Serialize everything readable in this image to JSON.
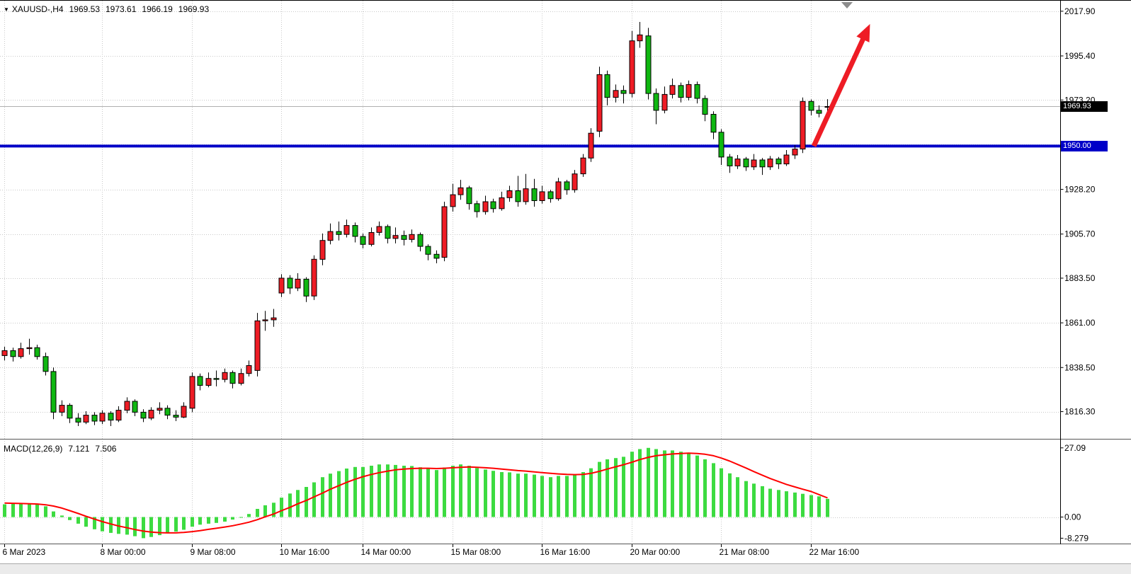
{
  "header": {
    "symbol_period": "XAUUSD-,H4",
    "open": "1969.53",
    "high": "1973.61",
    "low": "1966.19",
    "close": "1969.93"
  },
  "indicator": {
    "name": "MACD(12,26,9)",
    "value_main": "7.121",
    "value_signal": "7.506"
  },
  "colors": {
    "bull": "#EE1C25",
    "bear": "#0FB711",
    "candle_outline": "#000000",
    "grid": "#C8C8C8",
    "macd_hist": "#3CDB40",
    "macd_signal": "#FF0000",
    "hline": "#0000C8",
    "current_line": "#B0B0B0",
    "shift_marker": "#8C8C8C",
    "axis_text": "#000000"
  },
  "chart_data": {
    "type": "candlestick",
    "symbol": "XAUUSD",
    "timeframe": "H4",
    "title": "XAUUSD-,H4 1969.53 1973.61 1966.19 1969.93",
    "current_price": 1969.93,
    "current_price_label": "1969.93",
    "horizontal_line": 1950.0,
    "hline_label": "1950.00",
    "price_axis": {
      "view_top": 2023.2,
      "view_bottom": 1802.6,
      "grid": [
        {
          "v": 2017.9,
          "t": "2017.90"
        },
        {
          "v": 1995.4,
          "t": "1995.40"
        },
        {
          "v": 1973.2,
          "t": "1973.20"
        },
        {
          "v": 1950.7,
          "t": null
        },
        {
          "v": 1928.2,
          "t": "1928.20"
        },
        {
          "v": 1905.7,
          "t": "1905.70"
        },
        {
          "v": 1883.5,
          "t": "1883.50"
        },
        {
          "v": 1861.0,
          "t": "1861.00"
        },
        {
          "v": 1838.5,
          "t": "1838.50"
        },
        {
          "v": 1816.3,
          "t": "1816.30"
        }
      ]
    },
    "time_axis": {
      "labels": [
        {
          "i": 0,
          "t": "6 Mar 2023"
        },
        {
          "i": 12,
          "t": "8 Mar 00:00"
        },
        {
          "i": 23,
          "t": "9 Mar 08:00"
        },
        {
          "i": 34,
          "t": "10 Mar 16:00"
        },
        {
          "i": 44,
          "t": "14 Mar 00:00"
        },
        {
          "i": 55,
          "t": "15 Mar 08:00"
        },
        {
          "i": 66,
          "t": "16 Mar 16:00"
        },
        {
          "i": 77,
          "t": "20 Mar 00:00"
        },
        {
          "i": 88,
          "t": "21 Mar 08:00"
        },
        {
          "i": 99,
          "t": "22 Mar 16:00"
        }
      ]
    },
    "candles": {
      "open": [
        1844.5,
        1847,
        1844,
        1848,
        1848.5,
        1844,
        1836.5,
        1816,
        1819.5,
        1813,
        1811,
        1814.5,
        1811.5,
        1815.5,
        1812,
        1817,
        1821.5,
        1816,
        1813,
        1817,
        1818,
        1814.5,
        1813.5,
        1818,
        1834,
        1829.5,
        1833,
        1832.5,
        1836,
        1830.5,
        1835.5,
        1837,
        1862,
        1862.5,
        1876,
        1883.5,
        1878.5,
        1883,
        1874.5,
        1893,
        1902.5,
        1907,
        1905.5,
        1910,
        1904.5,
        1900.5,
        1906.5,
        1909.5,
        1903.5,
        1905,
        1903,
        1905.5,
        1899.5,
        1895.5,
        1894,
        1919.5,
        1925.5,
        1929,
        1921,
        1917,
        1922,
        1918.5,
        1924,
        1927.5,
        1922,
        1928.5,
        1922.5,
        1927,
        1923.5,
        1932,
        1928,
        1936,
        1944,
        1957.5,
        1986,
        1974.5,
        1978,
        1976.5,
        2003,
        2005.5,
        1976.5,
        1968,
        1976,
        1980.5,
        1974.5,
        1981,
        1974,
        1966,
        1957,
        1944.5,
        1940,
        1943.5,
        1939.5,
        1943,
        1939.5,
        1943.5,
        1941,
        1945.5,
        1948.5,
        1972.5,
        1968,
        1969.53
      ],
      "high": [
        1849,
        1848.5,
        1851,
        1853,
        1850,
        1846,
        1838.5,
        1822,
        1820.5,
        1815.5,
        1816.5,
        1816,
        1817,
        1816.5,
        1819,
        1823.5,
        1822.5,
        1817.5,
        1818.5,
        1821,
        1819.5,
        1817,
        1821,
        1836,
        1835.5,
        1836,
        1837,
        1838,
        1837,
        1838,
        1842,
        1866,
        1867,
        1868,
        1885.5,
        1885,
        1886,
        1884,
        1895,
        1906,
        1911,
        1912,
        1913,
        1911.5,
        1906,
        1909,
        1912,
        1910.5,
        1909,
        1907.5,
        1908,
        1906.5,
        1900.5,
        1897.5,
        1922,
        1931,
        1933,
        1930,
        1922.5,
        1925,
        1923.5,
        1927,
        1930,
        1935,
        1936,
        1933.5,
        1930,
        1928,
        1934,
        1933,
        1938,
        1946,
        1959,
        1990,
        1988,
        1981,
        1980.5,
        2008,
        2012.5,
        2009.5,
        1979,
        1980,
        1984,
        1982,
        1983,
        1982.5,
        1975.5,
        1967.5,
        1958.5,
        1946,
        1945.5,
        1944.5,
        1946,
        1944,
        1945,
        1944.5,
        1948,
        1950.5,
        1974.5,
        1973.5,
        1970.5,
        1973.61
      ],
      "low": [
        1842,
        1841.5,
        1843,
        1845,
        1842.5,
        1834.5,
        1812.5,
        1814,
        1810.5,
        1809,
        1810,
        1809.5,
        1810,
        1809,
        1811,
        1815.5,
        1814,
        1811,
        1812,
        1815,
        1812.5,
        1811.5,
        1813,
        1816,
        1827,
        1828.5,
        1829,
        1831,
        1828,
        1829.5,
        1834,
        1834,
        1857,
        1859,
        1874,
        1875.5,
        1877,
        1871.5,
        1872.5,
        1890,
        1900.5,
        1902.5,
        1904,
        1901.5,
        1898.5,
        1899.5,
        1905,
        1901,
        1901,
        1900,
        1901.5,
        1897,
        1892.5,
        1891,
        1892,
        1917,
        1923,
        1918,
        1914,
        1915.5,
        1916.5,
        1917.5,
        1922,
        1919.5,
        1920.5,
        1919.5,
        1921,
        1921.5,
        1922.5,
        1925.5,
        1926.5,
        1934.5,
        1942,
        1954.5,
        1970.5,
        1972,
        1971.5,
        1974.5,
        1999.5,
        1973.5,
        1961,
        1966.5,
        1974,
        1972,
        1973,
        1971.5,
        1962.5,
        1953.5,
        1940.5,
        1936.5,
        1938.5,
        1937.5,
        1938,
        1935.5,
        1938,
        1938.5,
        1940,
        1943.5,
        1946.5,
        1965.5,
        1964.5,
        1966.19
      ],
      "close": [
        1847,
        1844,
        1848,
        1848.5,
        1844,
        1836.5,
        1816,
        1819.5,
        1813,
        1811,
        1814.5,
        1811.5,
        1815.5,
        1812,
        1817,
        1821.5,
        1816,
        1813,
        1817,
        1818,
        1814.5,
        1813.5,
        1819,
        1834,
        1829.5,
        1833,
        1832.5,
        1836,
        1830.5,
        1835.5,
        1839.5,
        1862,
        1862.5,
        1863.5,
        1883.5,
        1878.5,
        1883,
        1874.5,
        1893,
        1902.5,
        1907,
        1905.5,
        1910,
        1904.5,
        1900.5,
        1906.5,
        1909.5,
        1903.5,
        1905,
        1903,
        1905.5,
        1899.5,
        1895.5,
        1893.5,
        1919.5,
        1925.5,
        1929,
        1921,
        1917,
        1922,
        1918.5,
        1924,
        1927.5,
        1922,
        1928.5,
        1922.5,
        1927,
        1923.5,
        1932,
        1928,
        1936,
        1944,
        1956.5,
        1986,
        1974.5,
        1978,
        1976.5,
        2003,
        2006,
        1976.5,
        1968,
        1976,
        1980.5,
        1974.5,
        1981,
        1974,
        1966,
        1957,
        1944.5,
        1940,
        1943.5,
        1939.5,
        1943,
        1939.5,
        1943.5,
        1941,
        1945.5,
        1948.5,
        1972.5,
        1968,
        1966.5,
        1969.93
      ]
    },
    "macd": {
      "view_top": 29.8,
      "view_bottom": -10.1,
      "axis_labels": [
        {
          "v": 27.09,
          "t": "27.09"
        },
        {
          "v": 0,
          "t": "0.00"
        },
        {
          "v": -8.279,
          "t": "-8.279"
        }
      ],
      "histogram": [
        5.0,
        5.2,
        5.4,
        5.3,
        5.0,
        4.2,
        2.2,
        0.6,
        -1.2,
        -2.6,
        -3.8,
        -4.8,
        -5.6,
        -6.2,
        -6.6,
        -6.9,
        -7.5,
        -8.279,
        -7.8,
        -7.1,
        -6.4,
        -5.7,
        -5.0,
        -3.8,
        -3.0,
        -2.6,
        -2.3,
        -1.8,
        -1.0,
        0.0,
        1.2,
        3.2,
        4.6,
        5.6,
        7.6,
        9.2,
        10.6,
        11.8,
        13.6,
        15.6,
        17.0,
        18.0,
        19.0,
        19.6,
        19.6,
        20.1,
        20.6,
        20.6,
        20.4,
        20.1,
        20.0,
        19.5,
        19.0,
        18.4,
        19.4,
        20.1,
        20.6,
        20.1,
        19.2,
        18.6,
        18.1,
        17.6,
        17.5,
        17.0,
        17.0,
        16.6,
        16.1,
        15.6,
        16.1,
        16.1,
        16.6,
        17.6,
        19.1,
        21.6,
        22.6,
        23.1,
        23.6,
        25.6,
        26.6,
        27.09,
        26.6,
        26.1,
        26.1,
        25.6,
        25.1,
        24.1,
        22.6,
        21.1,
        19.1,
        17.1,
        15.6,
        14.1,
        13.1,
        12.1,
        11.1,
        10.6,
        10.1,
        9.6,
        9.1,
        8.6,
        8.1,
        7.121
      ],
      "signal": [
        5.5,
        5.4,
        5.3,
        5.2,
        5.1,
        4.8,
        4.3,
        3.5,
        2.5,
        1.4,
        0.3,
        -0.8,
        -1.8,
        -2.7,
        -3.5,
        -4.2,
        -4.9,
        -5.5,
        -5.9,
        -6.1,
        -6.2,
        -6.2,
        -6.0,
        -5.7,
        -5.3,
        -4.8,
        -4.4,
        -3.9,
        -3.4,
        -2.7,
        -2.0,
        -1.0,
        0.1,
        1.2,
        2.5,
        3.8,
        5.2,
        6.5,
        7.9,
        9.4,
        10.9,
        12.3,
        13.6,
        14.8,
        15.8,
        16.7,
        17.4,
        18.0,
        18.5,
        18.8,
        19.0,
        19.1,
        19.1,
        19.0,
        19.1,
        19.3,
        19.5,
        19.6,
        19.5,
        19.3,
        19.1,
        18.8,
        18.5,
        18.2,
        18.0,
        17.7,
        17.4,
        17.1,
        16.9,
        16.7,
        16.6,
        16.7,
        17.1,
        17.9,
        18.8,
        19.7,
        20.5,
        21.5,
        22.5,
        23.4,
        24.0,
        24.4,
        24.7,
        24.9,
        25.0,
        24.9,
        24.6,
        24.0,
        23.1,
        21.9,
        20.6,
        19.2,
        17.8,
        16.4,
        15.1,
        13.9,
        12.8,
        11.8,
        10.9,
        10.0,
        8.8,
        7.506
      ]
    },
    "annotation_arrow": {
      "color": "#EE1C25",
      "start": {
        "index": 99.4,
        "price": 1950.0
      },
      "end": {
        "index": 106.3,
        "price": 2011.5
      }
    }
  }
}
